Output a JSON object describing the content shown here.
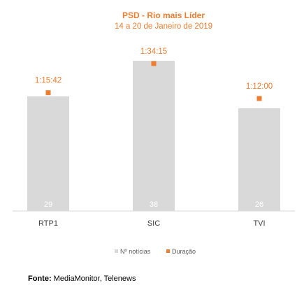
{
  "colors": {
    "bar": "#d9d9d9",
    "marker": "#ed7d31",
    "title": "#ed7d31",
    "bar_label": "#ffffff"
  },
  "chart_data": {
    "type": "bar",
    "title": "PSD - Rio mais Líder",
    "subtitle": "14 a 20 de Janeiro de 2019",
    "categories": [
      "RTP1",
      "SIC",
      "TVI"
    ],
    "series": [
      {
        "name": "Nº notícias",
        "kind": "bar",
        "values": [
          29,
          38,
          26
        ],
        "value_labels": [
          "29",
          "38",
          "26"
        ]
      },
      {
        "name": "Duração",
        "kind": "marker",
        "values_seconds": [
          4542,
          5655,
          4320
        ],
        "value_labels": [
          "1:15:42",
          "1:34:15",
          "1:12:00"
        ]
      }
    ],
    "legend_position": "bottom",
    "grid": false
  },
  "source": {
    "label": "Fonte:",
    "text": "MediaMonitor, Telenews"
  }
}
